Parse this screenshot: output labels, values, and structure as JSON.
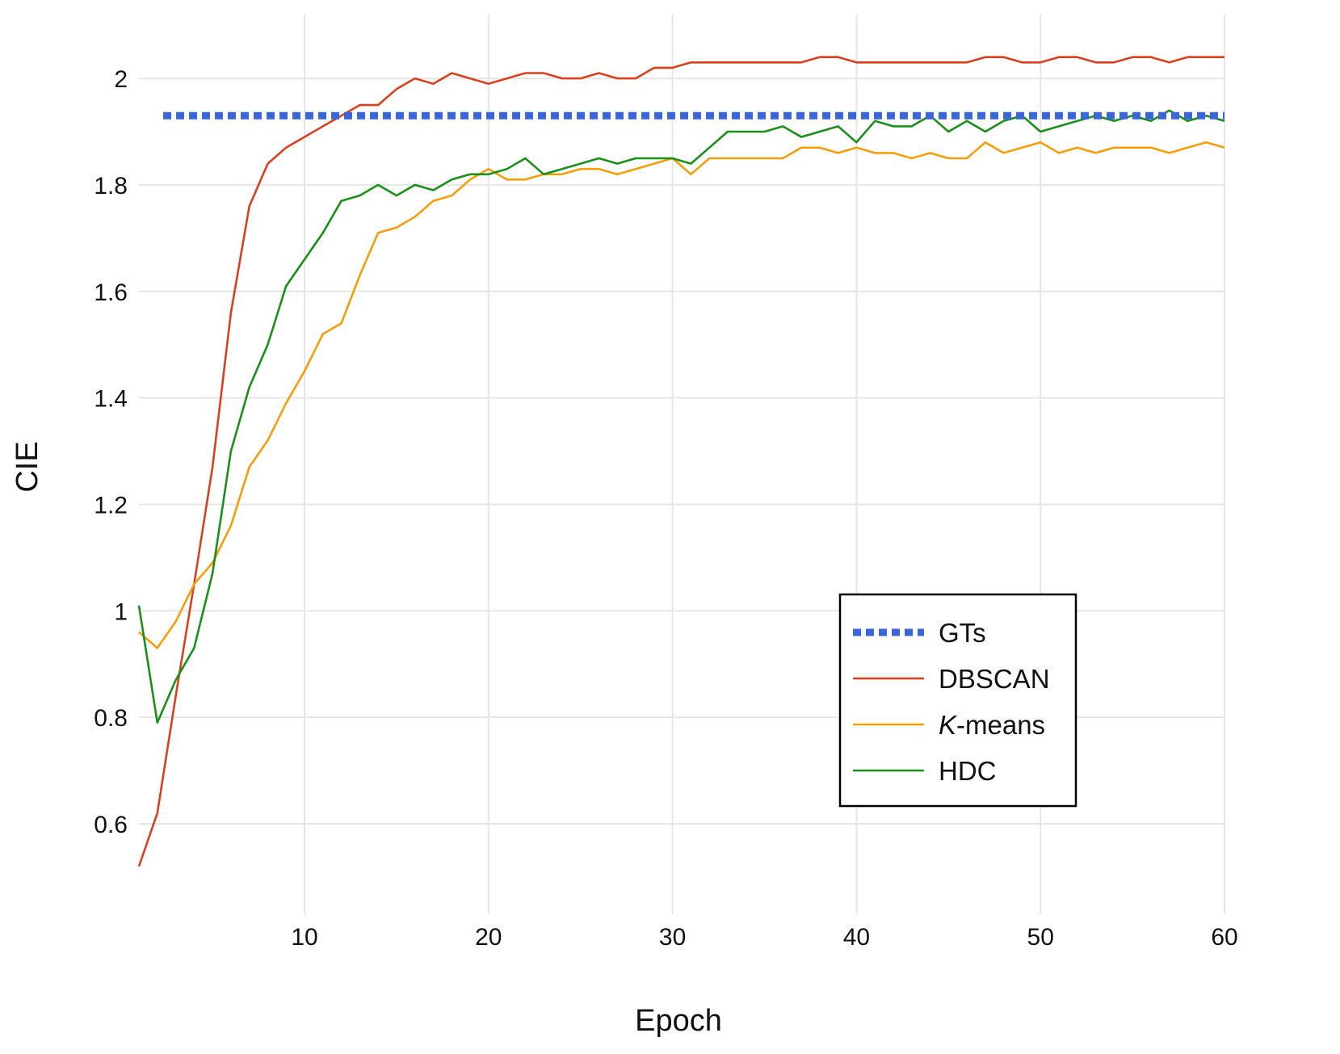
{
  "chart_data": {
    "type": "line",
    "title": "",
    "xlabel": "Epoch",
    "ylabel": "CIE",
    "xlim": [
      1,
      60
    ],
    "ylim": [
      0.43,
      2.12
    ],
    "x_ticks": [
      10,
      20,
      30,
      40,
      50,
      60
    ],
    "y_ticks": [
      0.6,
      0.8,
      1,
      1.2,
      1.4,
      1.6,
      1.8,
      2
    ],
    "y_tick_labels": [
      "0.6",
      "0.8",
      "1",
      "1.2",
      "1.4",
      "1.6",
      "1.8",
      "2"
    ],
    "grid": true,
    "legend_position": "lower-right",
    "x": [
      1,
      2,
      3,
      4,
      5,
      6,
      7,
      8,
      9,
      10,
      11,
      12,
      13,
      14,
      15,
      16,
      17,
      18,
      19,
      20,
      21,
      22,
      23,
      24,
      25,
      26,
      27,
      28,
      29,
      30,
      31,
      32,
      33,
      34,
      35,
      36,
      37,
      38,
      39,
      40,
      41,
      42,
      43,
      44,
      45,
      46,
      47,
      48,
      49,
      50,
      51,
      52,
      53,
      54,
      55,
      56,
      57,
      58,
      59,
      60
    ],
    "series": [
      {
        "name": "GTs",
        "name_prefix": "",
        "name_suffix": "GTs",
        "color": "#3a66d6",
        "dashed": true,
        "constant": 1.93
      },
      {
        "name": "DBSCAN",
        "name_prefix": "",
        "name_suffix": "DBSCAN",
        "color": "#d9411e",
        "dashed": false,
        "values": [
          0.52,
          0.62,
          0.84,
          1.05,
          1.27,
          1.56,
          1.76,
          1.84,
          1.87,
          1.89,
          1.91,
          1.93,
          1.95,
          1.95,
          1.98,
          2.0,
          1.99,
          2.01,
          2.0,
          1.99,
          2.0,
          2.01,
          2.01,
          2.0,
          2.0,
          2.01,
          2.0,
          2.0,
          2.02,
          2.02,
          2.03,
          2.03,
          2.03,
          2.03,
          2.03,
          2.03,
          2.03,
          2.04,
          2.04,
          2.03,
          2.03,
          2.03,
          2.03,
          2.03,
          2.03,
          2.03,
          2.04,
          2.04,
          2.03,
          2.03,
          2.04,
          2.04,
          2.03,
          2.03,
          2.04,
          2.04,
          2.03,
          2.04,
          2.04,
          2.04
        ]
      },
      {
        "name": "K-means",
        "name_prefix": "K",
        "name_suffix": "-means",
        "color": "#f59e0b",
        "dashed": false,
        "values": [
          0.96,
          0.93,
          0.98,
          1.05,
          1.09,
          1.16,
          1.27,
          1.32,
          1.39,
          1.45,
          1.52,
          1.54,
          1.63,
          1.71,
          1.72,
          1.74,
          1.77,
          1.78,
          1.81,
          1.83,
          1.81,
          1.81,
          1.82,
          1.82,
          1.83,
          1.83,
          1.82,
          1.83,
          1.84,
          1.85,
          1.82,
          1.85,
          1.85,
          1.85,
          1.85,
          1.85,
          1.87,
          1.87,
          1.86,
          1.87,
          1.86,
          1.86,
          1.85,
          1.86,
          1.85,
          1.85,
          1.88,
          1.86,
          1.87,
          1.88,
          1.86,
          1.87,
          1.86,
          1.87,
          1.87,
          1.87,
          1.86,
          1.87,
          1.88,
          1.87
        ]
      },
      {
        "name": "HDC",
        "name_prefix": "",
        "name_suffix": "HDC",
        "color": "#1a8f1a",
        "dashed": false,
        "values": [
          1.01,
          0.79,
          0.87,
          0.93,
          1.07,
          1.3,
          1.42,
          1.5,
          1.61,
          1.66,
          1.71,
          1.77,
          1.78,
          1.8,
          1.78,
          1.8,
          1.79,
          1.81,
          1.82,
          1.82,
          1.83,
          1.85,
          1.82,
          1.83,
          1.84,
          1.85,
          1.84,
          1.85,
          1.85,
          1.85,
          1.84,
          1.87,
          1.9,
          1.9,
          1.9,
          1.91,
          1.89,
          1.9,
          1.91,
          1.88,
          1.92,
          1.91,
          1.91,
          1.93,
          1.9,
          1.92,
          1.9,
          1.92,
          1.93,
          1.9,
          1.91,
          1.92,
          1.93,
          1.92,
          1.93,
          1.92,
          1.94,
          1.92,
          1.93,
          1.92
        ]
      }
    ]
  }
}
